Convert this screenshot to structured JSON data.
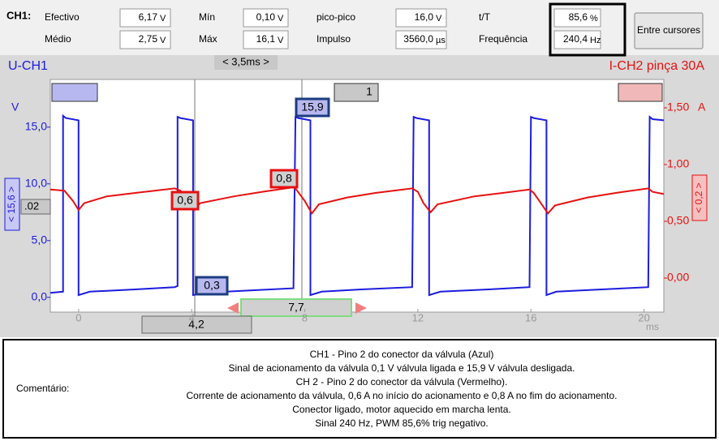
{
  "header": {
    "channel": "CH1:",
    "measurements": [
      {
        "label": "Efectivo",
        "value": "6,17",
        "unit": "V"
      },
      {
        "label": "Médio",
        "value": "2,75",
        "unit": "V"
      },
      {
        "label": "Mín",
        "value": "0,10",
        "unit": "V"
      },
      {
        "label": "Máx",
        "value": "16,1",
        "unit": "V"
      },
      {
        "label": "pico-pico",
        "value": "16,0",
        "unit": "V"
      },
      {
        "label": "Impulso",
        "value": "3560,0",
        "unit": "µs"
      },
      {
        "label": "t/T",
        "value": "85,6",
        "unit": "%"
      },
      {
        "label": "Frequência",
        "value": "240,4",
        "unit": "Hz"
      }
    ],
    "button": "Entre cursores"
  },
  "chart_data": {
    "type": "line",
    "title": "U-CH1",
    "title_right": "I-CH2 pinça 30A",
    "timebase": "< 3,5ms >",
    "y_unit": "V",
    "y2_unit": "A",
    "x_unit": "ms",
    "xlim": [
      -1.0,
      20.7
    ],
    "xticks": [
      0,
      4,
      8,
      12,
      16,
      20
    ],
    "ylim": [
      -1.3,
      19.2
    ],
    "yticks": [
      {
        "value": 0,
        "label": "0,0"
      },
      {
        "value": 5,
        "label": "5,0"
      },
      {
        "value": 10,
        "label": "10,0"
      },
      {
        "value": 15,
        "label": "15,0"
      }
    ],
    "y2lim": [
      -0.3,
      1.75
    ],
    "y2ticks": [
      {
        "value": 0,
        "label": "0,00"
      },
      {
        "value": 0.5,
        "label": "0,50"
      },
      {
        "value": 1,
        "label": "1,00"
      },
      {
        "value": 1.5,
        "label": "1,50"
      }
    ],
    "grid": false,
    "series": [
      {
        "name": "U-CH1",
        "color": "#1c1ce0",
        "x": [
          -1.0,
          -0.55,
          -0.55,
          -0.45,
          0.0,
          0.0,
          0.4,
          2.0,
          3.4,
          3.5,
          3.5,
          3.6,
          4.05,
          4.05,
          4.4,
          6.0,
          7.6,
          7.67,
          7.77,
          8.2,
          8.2,
          8.6,
          10.0,
          11.8,
          11.85,
          11.95,
          12.4,
          12.4,
          12.8,
          14.5,
          15.95,
          16.0,
          16.1,
          16.55,
          16.55,
          16.9,
          18.5,
          20.15,
          20.2,
          20.3,
          20.7
        ],
        "values": [
          0.4,
          0.5,
          16.0,
          15.8,
          15.6,
          0.2,
          0.5,
          0.7,
          0.9,
          1.0,
          15.9,
          15.8,
          15.6,
          0.2,
          0.4,
          0.6,
          0.8,
          15.9,
          15.8,
          15.6,
          0.2,
          0.5,
          0.7,
          0.9,
          15.9,
          15.8,
          15.6,
          0.2,
          0.5,
          0.7,
          0.9,
          15.9,
          15.8,
          15.6,
          0.2,
          0.5,
          0.7,
          0.9,
          15.9,
          15.7,
          15.6
        ]
      },
      {
        "name": "I-CH2",
        "color": "#e81010",
        "axis": "y2",
        "x": [
          -1.0,
          -0.5,
          -0.2,
          0.0,
          0.2,
          1.0,
          2.0,
          3.4,
          3.6,
          3.9,
          4.1,
          4.3,
          5.5,
          6.5,
          7.6,
          7.7,
          8.0,
          8.25,
          8.5,
          9.5,
          10.5,
          11.8,
          12.0,
          12.2,
          12.45,
          12.7,
          14.0,
          15.0,
          15.95,
          16.1,
          16.35,
          16.6,
          16.85,
          18.0,
          19.0,
          20.15,
          20.3,
          20.7
        ],
        "values": [
          0.78,
          0.77,
          0.68,
          0.6,
          0.66,
          0.72,
          0.75,
          0.79,
          0.77,
          0.68,
          0.6,
          0.66,
          0.72,
          0.76,
          0.8,
          0.78,
          0.68,
          0.57,
          0.65,
          0.71,
          0.75,
          0.79,
          0.76,
          0.66,
          0.58,
          0.65,
          0.72,
          0.75,
          0.78,
          0.75,
          0.66,
          0.57,
          0.64,
          0.71,
          0.75,
          0.79,
          0.76,
          0.74
        ]
      }
    ],
    "cursor_readouts": [
      "15,9",
      "0,3",
      "0,8",
      "0,6"
    ],
    "trigger_channel": "1",
    "trigger_level_ch1": "< 15,6 >",
    "offset_label": ".02",
    "trigger_level_ch2": "< 0,2 >",
    "cursor_delta": "7,7",
    "cursor_position": "4,2"
  },
  "comment": {
    "label": "Comentário:",
    "lines": [
      "CH1 - Pino 2 do conector da válvula (Azul)",
      "Sinal de acionamento da válvula 0,1 V válvula ligada e 15,9 V válvula desligada.",
      "CH 2 - Pino 2 do conector da válvula (Vermelho).",
      "Corrente de acionamento da válvula, 0,6 A no início do acionamento e 0,8 A no fim do acionamento.",
      "Conector ligado, motor aquecido em marcha lenta.",
      "Sinal 240 Hz, PWM 85,6% trig negativo."
    ]
  }
}
